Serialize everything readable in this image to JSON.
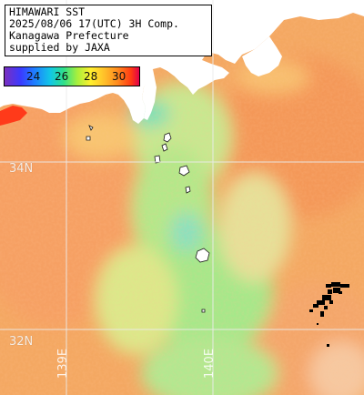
{
  "info_box": {
    "lines": [
      "HIMAWARI SST",
      "2025/08/06 17(UTC) 3H Comp.",
      "Kanagawa Prefecture",
      "supplied by JAXA"
    ]
  },
  "legend": {
    "ticks": [
      "24",
      "26",
      "28",
      "30"
    ],
    "range_c": [
      22,
      32
    ]
  },
  "grid": {
    "latitude_labels": [
      "34N",
      "32N"
    ],
    "longitude_labels": [
      "139E",
      "140E"
    ]
  },
  "colors": {
    "land": "#ffffff",
    "grid": "#e8e8e8",
    "missing_data": "#000000",
    "warm_sst": "#f4a060",
    "cool_sst": "#a8e880"
  }
}
